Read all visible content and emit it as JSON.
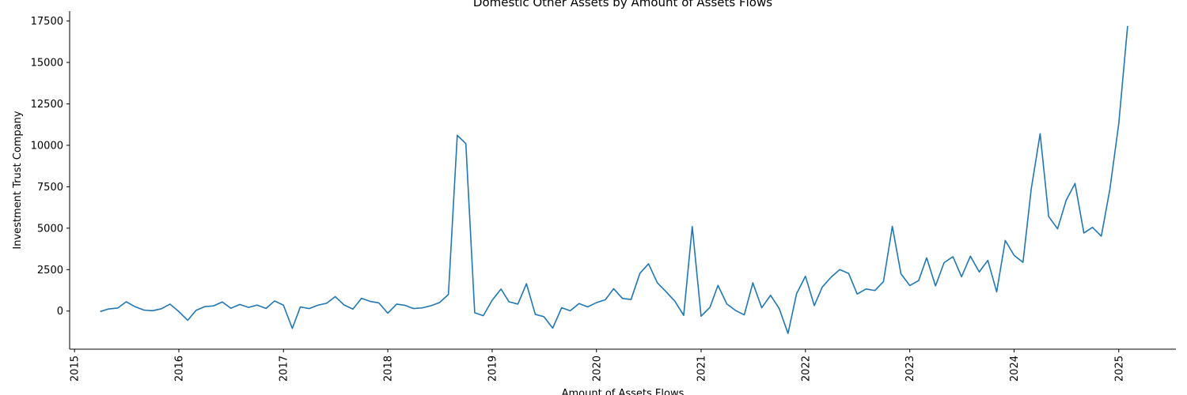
{
  "chart_data": {
    "type": "line",
    "title": "Domestic Other Assets by Amount of Assets Flows",
    "xlabel": "Amount of Assets Flows",
    "ylabel": "Investment Trust Company",
    "xlim": [
      "2014-12-15",
      "2025-07-20"
    ],
    "ylim": [
      -2300,
      18100
    ],
    "x_ticks": [
      "2015",
      "2016",
      "2017",
      "2018",
      "2019",
      "2020",
      "2021",
      "2022",
      "2023",
      "2024",
      "2025"
    ],
    "y_ticks": [
      0,
      2500,
      5000,
      7500,
      10000,
      12500,
      15000,
      17500
    ],
    "grid": false,
    "color": "#1f77b4",
    "series": [
      {
        "x": [
          "2015-04",
          "2015-05",
          "2015-06",
          "2015-07",
          "2015-08",
          "2015-09",
          "2015-10",
          "2015-11",
          "2015-12",
          "2016-01",
          "2016-02",
          "2016-03",
          "2016-04",
          "2016-05",
          "2016-06",
          "2016-07",
          "2016-08",
          "2016-09",
          "2016-10",
          "2016-11",
          "2016-12",
          "2017-01",
          "2017-02",
          "2017-03",
          "2017-04",
          "2017-05",
          "2017-06",
          "2017-07",
          "2017-08",
          "2017-09",
          "2017-10",
          "2017-11",
          "2017-12",
          "2018-01",
          "2018-02",
          "2018-03",
          "2018-04",
          "2018-05",
          "2018-06",
          "2018-07",
          "2018-08",
          "2018-09",
          "2018-10",
          "2018-11",
          "2018-12",
          "2019-01",
          "2019-02",
          "2019-03",
          "2019-04",
          "2019-05",
          "2019-06",
          "2019-07",
          "2019-08",
          "2019-09",
          "2019-10",
          "2019-11",
          "2019-12",
          "2020-01",
          "2020-02",
          "2020-03",
          "2020-04",
          "2020-05",
          "2020-06",
          "2020-07",
          "2020-08",
          "2020-09",
          "2020-10",
          "2020-11",
          "2020-12",
          "2021-01",
          "2021-02",
          "2021-03",
          "2021-04",
          "2021-05",
          "2021-06",
          "2021-07",
          "2021-08",
          "2021-09",
          "2021-10",
          "2021-11",
          "2021-12",
          "2022-01",
          "2022-02",
          "2022-03",
          "2022-04",
          "2022-05",
          "2022-06",
          "2022-07",
          "2022-08",
          "2022-09",
          "2022-10",
          "2022-11",
          "2022-12",
          "2023-01",
          "2023-02",
          "2023-03",
          "2023-04",
          "2023-05",
          "2023-06",
          "2023-07",
          "2023-08",
          "2023-09",
          "2023-10",
          "2023-11",
          "2023-12",
          "2024-01",
          "2024-02",
          "2024-03",
          "2024-04",
          "2024-05",
          "2024-06",
          "2024-07",
          "2024-08",
          "2024-09",
          "2024-10",
          "2024-11",
          "2024-12",
          "2025-01",
          "2025-02"
        ],
        "values": [
          -30,
          130,
          180,
          560,
          260,
          60,
          20,
          140,
          420,
          -30,
          -560,
          40,
          270,
          310,
          550,
          170,
          400,
          220,
          360,
          160,
          610,
          350,
          -1050,
          250,
          150,
          350,
          470,
          870,
          370,
          120,
          770,
          580,
          490,
          -130,
          420,
          350,
          150,
          190,
          320,
          510,
          1000,
          10600,
          10100,
          -100,
          -280,
          650,
          1330,
          560,
          420,
          1650,
          -200,
          -340,
          -1030,
          200,
          20,
          450,
          250,
          510,
          680,
          1350,
          760,
          700,
          2280,
          2850,
          1700,
          1160,
          600,
          -260,
          5100,
          -310,
          230,
          1550,
          430,
          40,
          -230,
          1700,
          200,
          950,
          160,
          -1350,
          1050,
          2100,
          330,
          1450,
          2050,
          2500,
          2270,
          1030,
          1330,
          1240,
          1780,
          5110,
          2250,
          1540,
          1840,
          3210,
          1520,
          2920,
          3280,
          2070,
          3310,
          2360,
          3060,
          1160,
          4260,
          3360,
          2940,
          7390,
          10700,
          5700,
          4960,
          6680,
          7700,
          4710,
          5050,
          4520,
          7350,
          11300,
          17200
        ]
      }
    ]
  }
}
